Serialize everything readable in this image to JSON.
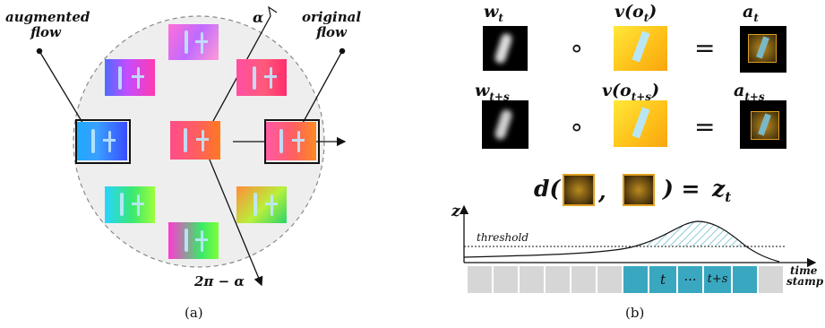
{
  "panel_a": {
    "augmented_flow_label": "augmented flow",
    "original_flow_label": "original flow",
    "alpha": "α",
    "two_pi_minus_alpha": "2π − α",
    "caption": "(a)"
  },
  "panel_b": {
    "w_t": "w",
    "w_t_sub": "t",
    "v_o_t": "v(o",
    "v_o_t_sub": "t",
    "v_close": ")",
    "a_t": "a",
    "a_t_sub": "t",
    "w_ts": "w",
    "w_ts_sub": "t+s",
    "v_o_ts": "v(o",
    "v_o_ts_sub": "t+s",
    "a_ts": "a",
    "a_ts_sub": "t+s",
    "compose_op": "∘",
    "equals_op": "=",
    "d_open": "d(",
    "comma": ",",
    "d_close": ") =",
    "z_result": "z",
    "z_result_sub": "t",
    "z_axis": "z",
    "threshold_label": "threshold",
    "time_axis_label_1": "time",
    "time_axis_label_2": "stamp",
    "cell_t": "t",
    "cell_dots": "···",
    "cell_ts": "t+s",
    "caption": "(b)"
  },
  "colors": {
    "timeline_active": "#3aa7c0",
    "timeline_idle": "#d6d6d6",
    "circle_fill": "#eeeeee",
    "mask_frame": "#e0a020"
  },
  "icons": [
    "arrow-icon",
    "flow-image",
    "attention-map",
    "velocity-map",
    "weight-map"
  ]
}
